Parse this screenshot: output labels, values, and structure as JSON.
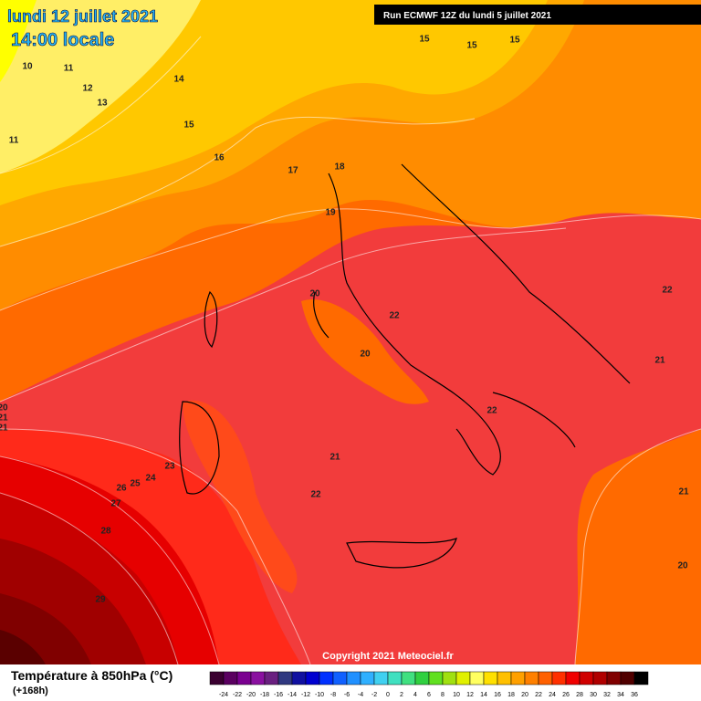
{
  "header": {
    "date": "lundi 12 juillet 2021",
    "time": "14:00 locale",
    "run": "Run ECMWF 12Z du lundi 5 juillet 2021"
  },
  "map": {
    "contour_labels": [
      "10",
      "11",
      "12",
      "13",
      "14",
      "15",
      "16",
      "17",
      "18",
      "19",
      "15",
      "15",
      "15",
      "11",
      "20",
      "22",
      "20",
      "22",
      "21",
      "22",
      "21",
      "22",
      "23",
      "24",
      "25",
      "26",
      "27",
      "28",
      "29",
      "21",
      "20",
      "20",
      "21",
      "21"
    ]
  },
  "copyright": "Copyright 2021 Meteociel.fr",
  "legend": {
    "title": "Température à 850hPa (°C)",
    "lead": "(+168h)",
    "ticks": [
      -24,
      -22,
      -20,
      -18,
      -16,
      -14,
      -12,
      -10,
      -8,
      -6,
      -4,
      -2,
      0,
      2,
      4,
      6,
      8,
      10,
      12,
      14,
      16,
      18,
      20,
      22,
      24,
      26,
      28,
      30,
      32,
      34,
      36
    ]
  }
}
